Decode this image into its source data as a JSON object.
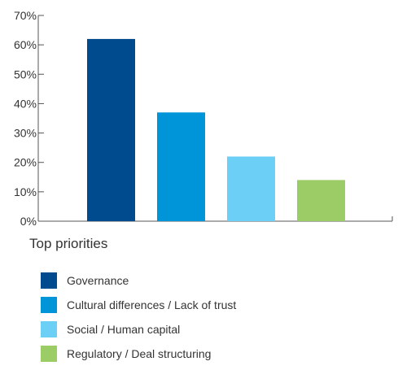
{
  "chart_data": {
    "type": "bar",
    "categories": [
      "Governance",
      "Cultural differences / Lack of trust",
      "Social / Human capital",
      "Regulatory / Deal structuring"
    ],
    "values": [
      62,
      37,
      22,
      14
    ],
    "colors": [
      "#004b8d",
      "#0094d9",
      "#6ccff6",
      "#9ccc65"
    ],
    "yticks": [
      "0%",
      "10%",
      "20%",
      "30%",
      "40%",
      "50%",
      "60%",
      "70%"
    ],
    "ylim": [
      0,
      70
    ],
    "grid": false,
    "legend_position": "bottom-left"
  },
  "legend": {
    "title": "Top priorities"
  }
}
